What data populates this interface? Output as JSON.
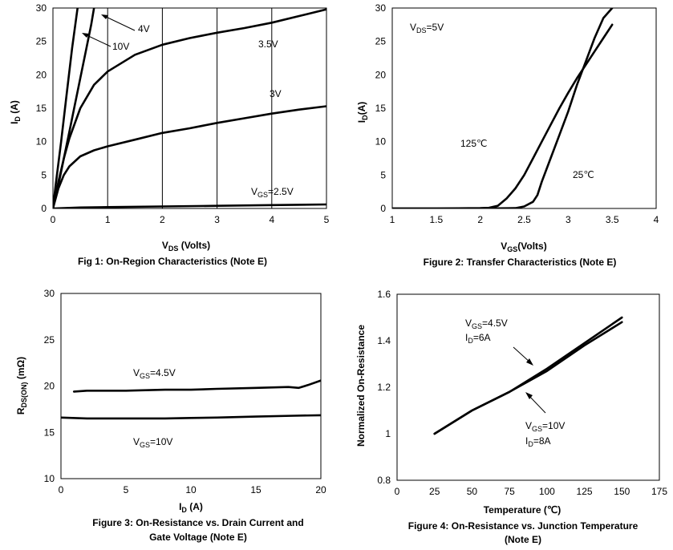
{
  "chart_data": [
    {
      "type": "line",
      "title": "Fig 1: On-Region Characteristics (Note E)",
      "xlabel_main": "V",
      "xlabel_sub": "DS",
      "xlabel_tail": " (Volts)",
      "ylabel_main": "I",
      "ylabel_sub": "D",
      "ylabel_tail": " (A)",
      "xlim": [
        0,
        5
      ],
      "ylim": [
        0,
        30
      ],
      "xticks": [
        "0",
        "1",
        "2",
        "3",
        "4",
        "5"
      ],
      "yticks": [
        "0",
        "5",
        "10",
        "15",
        "20",
        "25",
        "30"
      ],
      "grid": "vertical",
      "series": [
        {
          "name": "10V",
          "x": [
            0,
            0.05,
            0.15,
            0.25,
            0.35,
            0.45
          ],
          "y": [
            0,
            3.5,
            10,
            17,
            24,
            30
          ]
        },
        {
          "name": "4V",
          "x": [
            0,
            0.1,
            0.2,
            0.3,
            0.4,
            0.5,
            0.6,
            0.7,
            0.75
          ],
          "y": [
            0,
            3.5,
            7.5,
            11.5,
            15.5,
            19.5,
            23.5,
            27.5,
            30
          ]
        },
        {
          "name": "3.5V",
          "x": [
            0,
            0.1,
            0.2,
            0.3,
            0.5,
            0.75,
            1,
            1.5,
            2,
            2.5,
            3,
            3.5,
            4,
            4.5,
            5
          ],
          "y": [
            0,
            4,
            7.5,
            10.5,
            15,
            18.5,
            20.5,
            23,
            24.5,
            25.5,
            26.3,
            27,
            27.8,
            28.8,
            29.8
          ]
        },
        {
          "name": "3V",
          "x": [
            0,
            0.1,
            0.2,
            0.3,
            0.5,
            0.75,
            1,
            1.5,
            2,
            2.5,
            3,
            3.5,
            4,
            4.5,
            5
          ],
          "y": [
            0,
            3,
            5,
            6.3,
            7.8,
            8.7,
            9.3,
            10.3,
            11.3,
            12,
            12.8,
            13.5,
            14.2,
            14.8,
            15.3
          ]
        },
        {
          "name": "VGS=2.5V",
          "x": [
            0,
            0.5,
            1,
            2,
            3,
            4,
            5
          ],
          "y": [
            0,
            0.15,
            0.2,
            0.3,
            0.4,
            0.5,
            0.6
          ]
        }
      ],
      "annotations": [
        "4V",
        "10V",
        "3.5V",
        "3V"
      ],
      "vgs_label": {
        "main": "V",
        "sub": "GS",
        "tail": "=2.5V"
      }
    },
    {
      "type": "line",
      "title": "Figure 2: Transfer Characteristics (Note E)",
      "xlabel_main": "V",
      "xlabel_sub": "GS",
      "xlabel_tail": "(Volts)",
      "ylabel_main": "I",
      "ylabel_sub": "D",
      "ylabel_tail": "(A)",
      "xlim": [
        1,
        4
      ],
      "ylim": [
        0,
        30
      ],
      "xticks": [
        "1",
        "1.5",
        "2",
        "2.5",
        "3",
        "3.5",
        "4"
      ],
      "yticks": [
        "0",
        "5",
        "10",
        "15",
        "20",
        "25",
        "30"
      ],
      "grid": "none",
      "series": [
        {
          "name": "125℃",
          "x": [
            1,
            1.5,
            2,
            2.1,
            2.2,
            2.3,
            2.4,
            2.5,
            2.6,
            2.7,
            2.8,
            2.9,
            3,
            3.1,
            3.2,
            3.3,
            3.4,
            3.5
          ],
          "y": [
            0,
            0,
            0.05,
            0.1,
            0.4,
            1.5,
            3,
            5,
            7.5,
            10,
            12.5,
            15,
            17.3,
            19.5,
            21.5,
            23.5,
            25.5,
            27.5
          ]
        },
        {
          "name": "25℃",
          "x": [
            1,
            2,
            2.4,
            2.5,
            2.6,
            2.65,
            2.7,
            2.8,
            2.9,
            3,
            3.1,
            3.2,
            3.3,
            3.4,
            3.5
          ],
          "y": [
            0,
            0,
            0.05,
            0.3,
            1,
            2,
            4,
            7.5,
            11,
            14.5,
            18.5,
            22,
            25.5,
            28.5,
            30
          ]
        }
      ],
      "annotations": [
        "125℃",
        "25℃"
      ],
      "vds_label": {
        "main": "V",
        "sub": "DS",
        "tail": "=5V"
      }
    },
    {
      "type": "line",
      "title_line1": "Figure 3: On-Resistance vs. Drain Current and",
      "title_line2": "Gate Voltage (Note E)",
      "xlabel_main": "I",
      "xlabel_sub": "D",
      "xlabel_tail": " (A)",
      "ylabel_main": "R",
      "ylabel_sub": "DS(ON)",
      "ylabel_tail": " (mΩ)",
      "xlim": [
        0,
        20
      ],
      "ylim": [
        10,
        30
      ],
      "xticks": [
        "0",
        "5",
        "10",
        "15",
        "20"
      ],
      "yticks": [
        "10",
        "15",
        "20",
        "25",
        "30"
      ],
      "grid": "none",
      "series": [
        {
          "name": "VGS=4.5V",
          "x": [
            1,
            2,
            5,
            8,
            10,
            12,
            15,
            17.5,
            18.3,
            19,
            20
          ],
          "y": [
            19.4,
            19.5,
            19.5,
            19.6,
            19.6,
            19.7,
            19.8,
            19.9,
            19.8,
            20.1,
            20.6
          ]
        },
        {
          "name": "VGS=10V",
          "x": [
            0,
            2,
            5,
            8,
            10,
            12,
            15,
            18,
            20
          ],
          "y": [
            16.6,
            16.5,
            16.5,
            16.5,
            16.55,
            16.6,
            16.7,
            16.8,
            16.85
          ]
        }
      ],
      "label_45": {
        "main": "V",
        "sub": "GS",
        "tail": "=4.5V"
      },
      "label_10": {
        "main": "V",
        "sub": "GS",
        "tail": "=10V"
      }
    },
    {
      "type": "line",
      "title_line1": "Figure 4: On-Resistance vs. Junction Temperature",
      "title_line2": "(Note E)",
      "xlabel": "Temperature (℃)",
      "ylabel": "Normalized On-Resistance",
      "xlim": [
        0,
        175
      ],
      "ylim": [
        0.8,
        1.6
      ],
      "xticks": [
        "0",
        "25",
        "50",
        "75",
        "100",
        "125",
        "150",
        "175"
      ],
      "yticks": [
        "0.8",
        "1",
        "1.2",
        "1.4",
        "1.6"
      ],
      "grid": "none",
      "series": [
        {
          "name": "VGS=4.5V ID=6A",
          "x": [
            25,
            50,
            75,
            100,
            125,
            150
          ],
          "y": [
            1.0,
            1.1,
            1.18,
            1.28,
            1.39,
            1.5
          ]
        },
        {
          "name": "VGS=10V ID=8A",
          "x": [
            25,
            50,
            75,
            100,
            125,
            150
          ],
          "y": [
            1.0,
            1.1,
            1.18,
            1.27,
            1.38,
            1.48
          ]
        }
      ],
      "label_45": {
        "main": "V",
        "sub": "GS",
        "tail": "=4.5V",
        "id_main": "I",
        "id_sub": "D",
        "id_tail": "=6A"
      },
      "label_10": {
        "main": "V",
        "sub": "GS",
        "tail": "=10V",
        "id_main": "I",
        "id_sub": "D",
        "id_tail": "=8A"
      }
    }
  ]
}
